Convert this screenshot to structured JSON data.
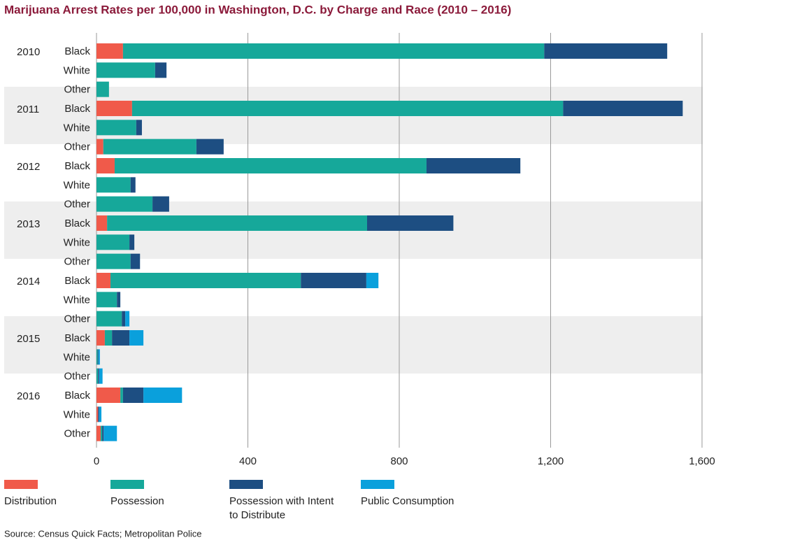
{
  "chart_data": {
    "type": "stacked-bar-horizontal",
    "title": "Marijuana Arrest Rates per 100,000 in Washington, D.C. by Charge and Race (2010 – 2016)",
    "groups": [
      "2010",
      "2011",
      "2012",
      "2013",
      "2014",
      "2015",
      "2016"
    ],
    "categories": [
      "Black",
      "White",
      "Other",
      "Black",
      "White",
      "Other",
      "Black",
      "White",
      "Other",
      "Black",
      "White",
      "Other",
      "Black",
      "White",
      "Other",
      "Black",
      "White",
      "Other",
      "Black",
      "White",
      "Other"
    ],
    "series": [
      {
        "name": "Distribution",
        "color": "#f05a4a",
        "values": [
          70,
          0,
          0,
          94,
          0,
          18,
          48,
          0,
          0,
          28,
          0,
          0,
          37,
          0,
          0,
          22,
          0,
          0,
          63,
          4,
          11
        ]
      },
      {
        "name": "Possession",
        "color": "#16a89a",
        "values": [
          1113,
          155,
          33,
          1139,
          105,
          246,
          824,
          90,
          148,
          687,
          87,
          90,
          503,
          54,
          67,
          19,
          3,
          4,
          7,
          0,
          4
        ]
      },
      {
        "name": "Possession with Intent to Distribute",
        "color": "#1d4e82",
        "values": [
          325,
          30,
          0,
          316,
          15,
          72,
          248,
          13,
          44,
          228,
          13,
          25,
          173,
          9,
          9,
          46,
          2,
          3,
          54,
          3,
          4
        ]
      },
      {
        "name": "Public Consumption",
        "color": "#0aa0dc",
        "values": [
          0,
          0,
          0,
          0,
          0,
          0,
          0,
          0,
          0,
          0,
          0,
          0,
          32,
          0,
          11,
          37,
          4,
          9,
          102,
          6,
          35
        ]
      }
    ],
    "xlim": [
      0,
      1600
    ],
    "xticks": [
      0,
      400,
      800,
      {
        "value": 1200,
        "label": "1,200"
      },
      {
        "value": 1600,
        "label": "1,600"
      }
    ],
    "grid": true,
    "source": "Source: Census Quick Facts; Metropolitan Police"
  }
}
